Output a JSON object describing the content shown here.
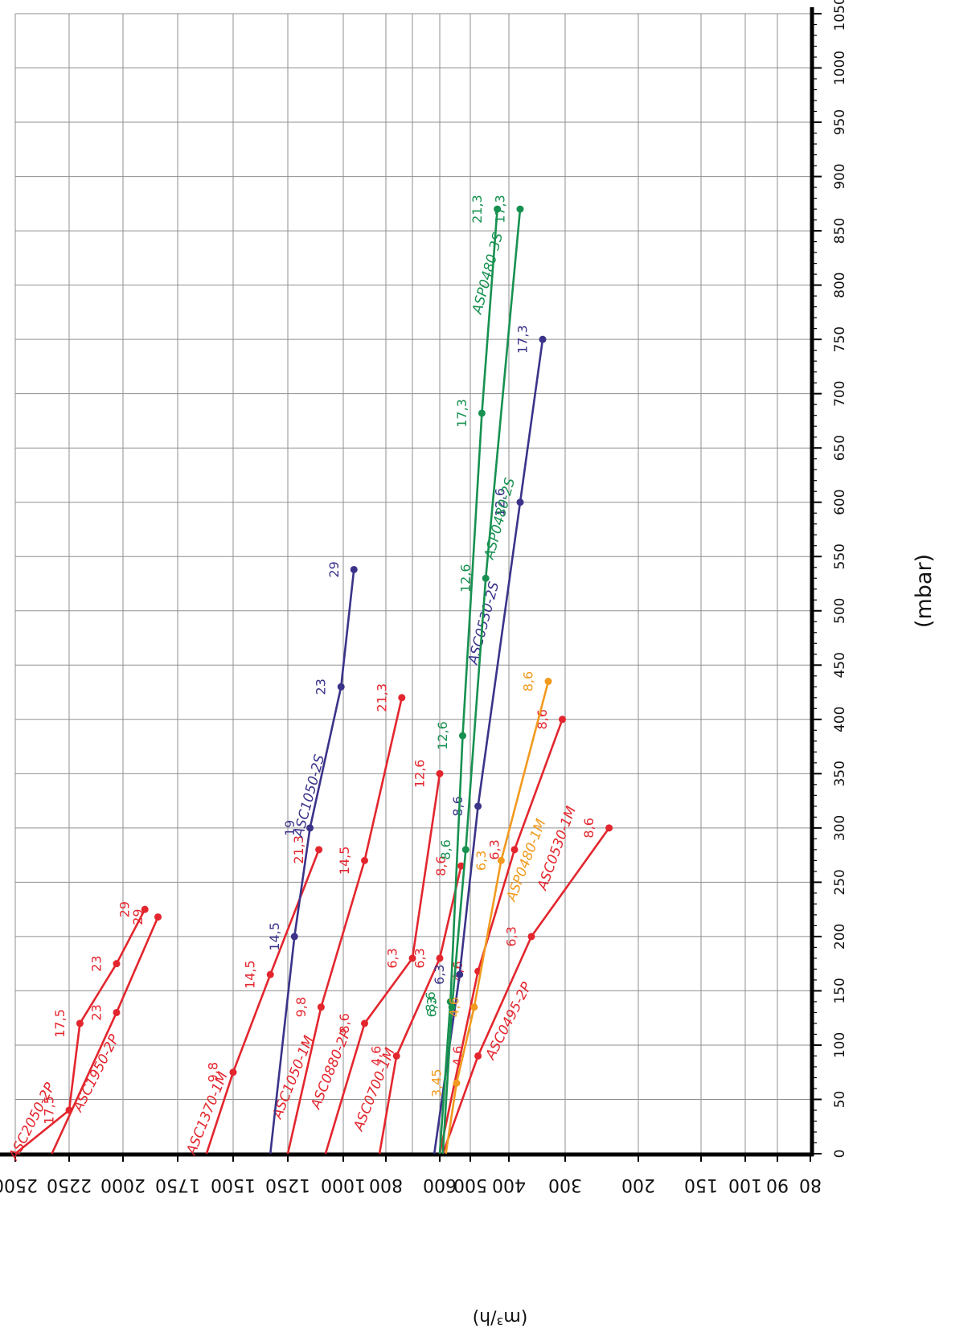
{
  "chart_data": {
    "type": "line",
    "xlabel": "(mbar)",
    "ylabel": "(m³/h)",
    "x_ticks": [
      0,
      50,
      100,
      150,
      200,
      250,
      300,
      350,
      400,
      450,
      500,
      550,
      600,
      650,
      700,
      750,
      800,
      850,
      900,
      950,
      1000,
      1050
    ],
    "y_ticks": [
      2500,
      2250,
      2000,
      1750,
      1500,
      1250,
      1000,
      800,
      600,
      500,
      400,
      300,
      200,
      150,
      100,
      90,
      80
    ],
    "xlim": [
      0,
      1050
    ],
    "y_scale": "non-linear (as printed)",
    "grid": true,
    "colors": {
      "red": "#e3262e",
      "blue": "#3a3389",
      "green": "#179150",
      "orange": "#f29a1f"
    },
    "series": [
      {
        "name": "ASC2050-2P",
        "color": "red",
        "points": [
          [
            0,
            2500
          ],
          [
            40,
            2250
          ],
          [
            120,
            2200
          ],
          [
            175,
            2030
          ],
          [
            225,
            1900
          ]
        ],
        "labels": [
          "",
          "17,5",
          "17,5",
          "23",
          "29"
        ]
      },
      {
        "name": "ASC1950-2P",
        "color": "red",
        "points": [
          [
            0,
            2330
          ],
          [
            130,
            2030
          ],
          [
            218,
            1840
          ]
        ],
        "labels": [
          "",
          "23",
          "29"
        ]
      },
      {
        "name": "ASC1370-1M",
        "color": "red",
        "points": [
          [
            0,
            1620
          ],
          [
            75,
            1500
          ],
          [
            165,
            1330
          ],
          [
            280,
            1110
          ]
        ],
        "labels": [
          "",
          "9,8",
          "14,5",
          "21,3"
        ]
      },
      {
        "name": "ASC1050-1M",
        "color": "red",
        "points": [
          [
            0,
            1250
          ],
          [
            135,
            1100
          ],
          [
            270,
            900
          ],
          [
            420,
            740
          ]
        ],
        "labels": [
          "",
          "9,8",
          "14,5",
          "21,3"
        ]
      },
      {
        "name": "ASC0880-2P",
        "color": "red",
        "points": [
          [
            0,
            1080
          ],
          [
            120,
            900
          ],
          [
            180,
            700
          ],
          [
            350,
            600
          ]
        ],
        "labels": [
          "",
          "8,6",
          "6,3",
          "12,6"
        ]
      },
      {
        "name": "ASC0700-1M",
        "color": "red",
        "points": [
          [
            0,
            830
          ],
          [
            90,
            760
          ],
          [
            180,
            600
          ],
          [
            265,
            530
          ]
        ],
        "labels": [
          "",
          "4,6",
          "6,3",
          "8,6"
        ]
      },
      {
        "name": "ASC0495-2P",
        "color": "red",
        "points": [
          [
            0,
            590
          ],
          [
            90,
            480
          ],
          [
            200,
            360
          ],
          [
            300,
            240
          ]
        ],
        "labels": [
          "",
          "4,6",
          "6,3",
          "8,6"
        ]
      },
      {
        "name": "ASC0530-1M",
        "color": "red",
        "points": [
          [
            0,
            600
          ],
          [
            168,
            480
          ],
          [
            280,
            390
          ],
          [
            400,
            305
          ]
        ],
        "labels": [
          "",
          "4,6",
          "6,3",
          "8,6"
        ]
      },
      {
        "name": "ASC1050-2S",
        "color": "blue",
        "points": [
          [
            0,
            1330
          ],
          [
            200,
            1220
          ],
          [
            300,
            1150
          ],
          [
            430,
            1010
          ],
          [
            538,
            950
          ]
        ],
        "labels": [
          "",
          "14,5",
          "19",
          "23",
          "29"
        ]
      },
      {
        "name": "ASC0530-2S",
        "color": "blue",
        "points": [
          [
            0,
            620
          ],
          [
            165,
            535
          ],
          [
            320,
            480
          ],
          [
            600,
            380
          ],
          [
            750,
            340
          ]
        ],
        "labels": [
          "",
          "6,3",
          "8,6",
          "12,6",
          "17,3"
        ]
      },
      {
        "name": "ASP0480-2S",
        "color": "green",
        "points": [
          [
            0,
            590
          ],
          [
            135,
            560
          ],
          [
            280,
            515
          ],
          [
            530,
            460
          ],
          [
            870,
            380
          ]
        ],
        "labels": [
          "",
          "6,3",
          "8,6",
          "12,6",
          "17,3"
        ]
      },
      {
        "name": "ASP0480-3S",
        "color": "green",
        "points": [
          [
            0,
            600
          ],
          [
            140,
            565
          ],
          [
            385,
            525
          ],
          [
            682,
            470
          ],
          [
            870,
            430
          ]
        ],
        "labels": [
          "",
          "8,6",
          "12,6",
          "17,3",
          "21,3"
        ]
      },
      {
        "name": "ASP0480-1M",
        "color": "orange",
        "points": [
          [
            0,
            580
          ],
          [
            65,
            545
          ],
          [
            135,
            490
          ],
          [
            270,
            420
          ],
          [
            435,
            330
          ]
        ],
        "labels": [
          "",
          "3,45",
          "4,6",
          "6,3",
          "8,6"
        ]
      }
    ]
  }
}
